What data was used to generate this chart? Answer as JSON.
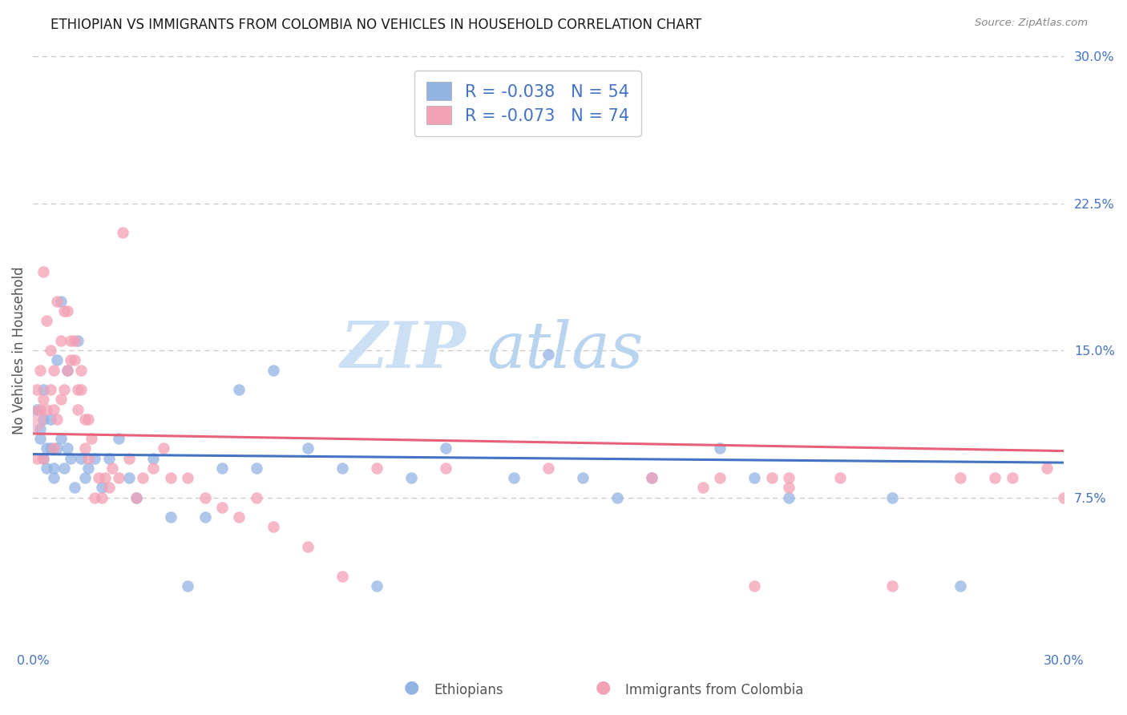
{
  "title": "ETHIOPIAN VS IMMIGRANTS FROM COLOMBIA NO VEHICLES IN HOUSEHOLD CORRELATION CHART",
  "source": "Source: ZipAtlas.com",
  "ylabel": "No Vehicles in Household",
  "x_min": 0.0,
  "x_max": 0.3,
  "y_min": 0.0,
  "y_max": 0.3,
  "y_ticks_right": [
    0.075,
    0.15,
    0.225,
    0.3
  ],
  "y_tick_labels_right": [
    "7.5%",
    "15.0%",
    "22.5%",
    "30.0%"
  ],
  "r1": -0.038,
  "n1": 54,
  "r2": -0.073,
  "n2": 74,
  "ethiopians_color": "#92b4e3",
  "colombia_color": "#f4a0b5",
  "line1_color": "#4472c4",
  "line2_color": "#e8607a",
  "background_color": "#ffffff",
  "watermark_color": "#cce0f5",
  "grid_color": "#c8c8c8",
  "ethiopians_x": [
    0.001,
    0.002,
    0.002,
    0.003,
    0.003,
    0.003,
    0.004,
    0.004,
    0.005,
    0.005,
    0.006,
    0.006,
    0.007,
    0.007,
    0.008,
    0.008,
    0.009,
    0.01,
    0.01,
    0.011,
    0.012,
    0.013,
    0.014,
    0.015,
    0.016,
    0.018,
    0.02,
    0.022,
    0.025,
    0.028,
    0.03,
    0.035,
    0.04,
    0.045,
    0.05,
    0.055,
    0.06,
    0.065,
    0.07,
    0.08,
    0.09,
    0.1,
    0.11,
    0.12,
    0.14,
    0.15,
    0.16,
    0.17,
    0.18,
    0.2,
    0.21,
    0.22,
    0.25,
    0.27
  ],
  "ethiopians_y": [
    0.12,
    0.11,
    0.105,
    0.13,
    0.095,
    0.115,
    0.1,
    0.09,
    0.115,
    0.1,
    0.09,
    0.085,
    0.145,
    0.1,
    0.175,
    0.105,
    0.09,
    0.14,
    0.1,
    0.095,
    0.08,
    0.155,
    0.095,
    0.085,
    0.09,
    0.095,
    0.08,
    0.095,
    0.105,
    0.085,
    0.075,
    0.095,
    0.065,
    0.03,
    0.065,
    0.09,
    0.13,
    0.09,
    0.14,
    0.1,
    0.09,
    0.03,
    0.085,
    0.1,
    0.085,
    0.148,
    0.085,
    0.075,
    0.085,
    0.1,
    0.085,
    0.075,
    0.075,
    0.03
  ],
  "colombia_x": [
    0.001,
    0.001,
    0.002,
    0.002,
    0.003,
    0.003,
    0.003,
    0.004,
    0.004,
    0.005,
    0.005,
    0.006,
    0.006,
    0.006,
    0.007,
    0.007,
    0.008,
    0.008,
    0.009,
    0.009,
    0.01,
    0.01,
    0.011,
    0.011,
    0.012,
    0.012,
    0.013,
    0.013,
    0.014,
    0.014,
    0.015,
    0.015,
    0.016,
    0.016,
    0.017,
    0.018,
    0.019,
    0.02,
    0.021,
    0.022,
    0.023,
    0.025,
    0.026,
    0.028,
    0.03,
    0.032,
    0.035,
    0.038,
    0.04,
    0.045,
    0.05,
    0.055,
    0.06,
    0.065,
    0.07,
    0.08,
    0.09,
    0.1,
    0.12,
    0.15,
    0.18,
    0.2,
    0.22,
    0.25,
    0.27,
    0.28,
    0.285,
    0.295,
    0.3,
    0.195,
    0.21,
    0.215,
    0.22,
    0.235
  ],
  "colombia_y": [
    0.13,
    0.095,
    0.14,
    0.12,
    0.19,
    0.095,
    0.125,
    0.165,
    0.12,
    0.15,
    0.13,
    0.12,
    0.1,
    0.14,
    0.175,
    0.115,
    0.155,
    0.125,
    0.17,
    0.13,
    0.17,
    0.14,
    0.145,
    0.155,
    0.155,
    0.145,
    0.13,
    0.12,
    0.14,
    0.13,
    0.115,
    0.1,
    0.115,
    0.095,
    0.105,
    0.075,
    0.085,
    0.075,
    0.085,
    0.08,
    0.09,
    0.085,
    0.21,
    0.095,
    0.075,
    0.085,
    0.09,
    0.1,
    0.085,
    0.085,
    0.075,
    0.07,
    0.065,
    0.075,
    0.06,
    0.05,
    0.035,
    0.09,
    0.09,
    0.09,
    0.085,
    0.085,
    0.08,
    0.03,
    0.085,
    0.085,
    0.085,
    0.09,
    0.075,
    0.08,
    0.03,
    0.085,
    0.085,
    0.085
  ],
  "marker_size": 110,
  "legend_fontsize": 15,
  "title_fontsize": 12,
  "axis_label_fontsize": 12,
  "tick_fontsize": 11.5
}
